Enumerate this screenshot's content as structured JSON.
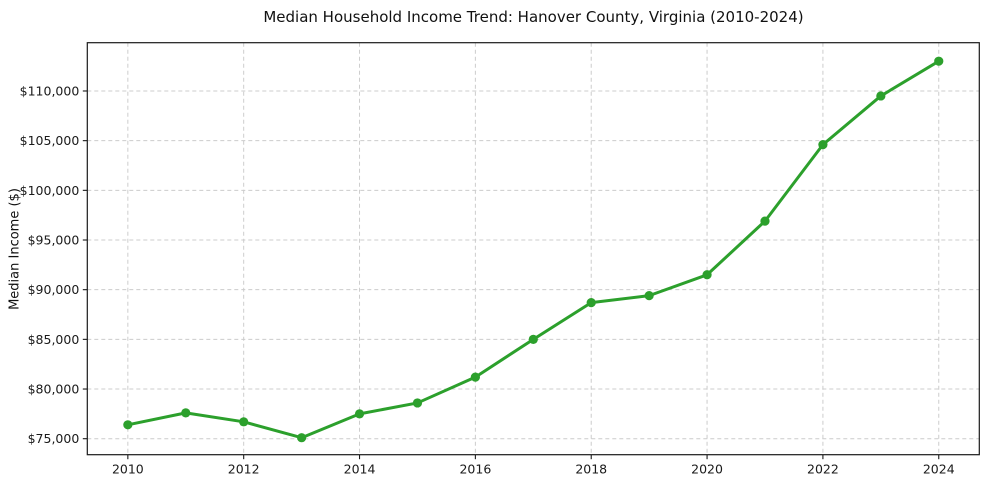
{
  "figure": {
    "background_color": "#ffffff"
  },
  "chart_data": {
    "type": "line",
    "title": "Median Household Income Trend: Hanover County, Virginia (2010-2024)",
    "xlabel": "",
    "ylabel": "Median Income ($)",
    "x": [
      2010,
      2011,
      2012,
      2013,
      2014,
      2015,
      2016,
      2017,
      2018,
      2019,
      2020,
      2021,
      2022,
      2023,
      2024
    ],
    "values": [
      76400,
      77600,
      76700,
      75100,
      77500,
      78600,
      81200,
      85000,
      88700,
      89400,
      91500,
      96900,
      104600,
      109500,
      113000
    ],
    "line_color": "#2ca02c",
    "marker": "circle",
    "grid": {
      "visible": true,
      "style": "dashed",
      "color": "#cccccc"
    },
    "legend": "none",
    "xlim": [
      2009.3,
      2024.7
    ],
    "ylim": [
      73390,
      114860
    ],
    "x_ticks": [
      {
        "value": 2010,
        "label": "2010"
      },
      {
        "value": 2012,
        "label": "2012"
      },
      {
        "value": 2014,
        "label": "2014"
      },
      {
        "value": 2016,
        "label": "2016"
      },
      {
        "value": 2018,
        "label": "2018"
      },
      {
        "value": 2020,
        "label": "2020"
      },
      {
        "value": 2022,
        "label": "2022"
      },
      {
        "value": 2024,
        "label": "2024"
      }
    ],
    "y_ticks": [
      {
        "value": 75000,
        "label": "$75,000"
      },
      {
        "value": 80000,
        "label": "$80,000"
      },
      {
        "value": 85000,
        "label": "$85,000"
      },
      {
        "value": 90000,
        "label": "$90,000"
      },
      {
        "value": 95000,
        "label": "$95,000"
      },
      {
        "value": 100000,
        "label": "$100,000"
      },
      {
        "value": 105000,
        "label": "$105,000"
      },
      {
        "value": 110000,
        "label": "$110,000"
      }
    ]
  }
}
